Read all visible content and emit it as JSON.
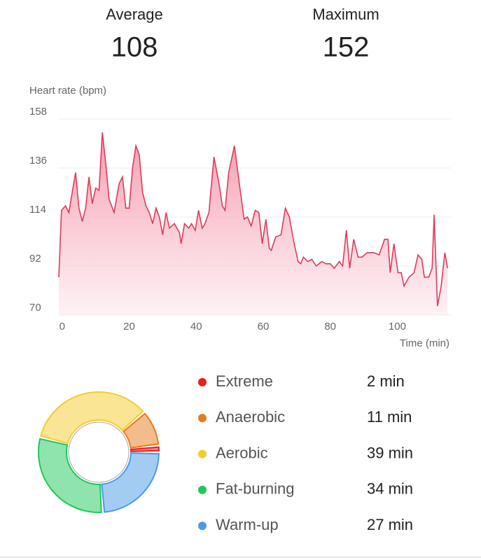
{
  "summary": {
    "average_label": "Average",
    "average": 108,
    "maximum_label": "Maximum",
    "maximum": 152
  },
  "chart_data": [
    {
      "type": "area",
      "y_label": "Heart rate (bpm)",
      "x_label": "Time (min)",
      "color": "#dc3c5a",
      "xlim": [
        -1,
        116
      ],
      "ylim": [
        70,
        158
      ],
      "xticks": [
        0,
        20,
        40,
        60,
        80,
        100
      ],
      "yticks": [
        70,
        92,
        114,
        136,
        158
      ],
      "grid": true,
      "x": [
        -1,
        -0.2,
        1,
        2,
        4,
        5,
        6,
        7,
        8,
        9,
        10,
        11,
        12,
        13,
        14,
        15.5,
        17,
        18,
        19,
        20,
        21,
        22,
        23,
        24,
        25,
        26,
        27,
        28,
        29,
        30,
        31,
        32,
        33.5,
        35,
        35.5,
        36.5,
        37.8,
        38.6,
        39.7,
        40.7,
        41.8,
        42.6,
        43.8,
        45.3,
        46.8,
        47.8,
        48.6,
        49.7,
        51.4,
        52.6,
        54.3,
        55.3,
        56.4,
        57.6,
        58.7,
        59.7,
        60.8,
        61.8,
        62.4,
        63.7,
        65.3,
        66.6,
        67.8,
        69.1,
        70.4,
        71.2,
        72,
        73.3,
        74.5,
        75.8,
        77.5,
        78.7,
        80,
        81.2,
        82.7,
        83.7,
        84.8,
        85.8,
        87,
        88.3,
        89.5,
        91,
        93,
        94.6,
        96.2,
        97.2,
        97.9,
        99,
        100.2,
        101.2,
        102,
        103.5,
        105,
        106.2,
        107.3,
        108.1,
        109.4,
        110.4,
        111,
        112,
        113.1,
        114.2,
        115
      ],
      "values": [
        87,
        117,
        119,
        116,
        134,
        118,
        112,
        118,
        132,
        120,
        127,
        126,
        152,
        138,
        122,
        116,
        129,
        132,
        118,
        118,
        136,
        146,
        142,
        125,
        119,
        116,
        111,
        118,
        114,
        106,
        116,
        109,
        111,
        107,
        102,
        111,
        109,
        111,
        108,
        117,
        109,
        111,
        116,
        141,
        129,
        119,
        117,
        134,
        146,
        132,
        113,
        114,
        110,
        117,
        116,
        102,
        113,
        100,
        99,
        105,
        106,
        118,
        114,
        103,
        94,
        93,
        96,
        94,
        95,
        92,
        94,
        93,
        93,
        91,
        94,
        92,
        108,
        91,
        104,
        96,
        96,
        98,
        98,
        97,
        104,
        104,
        89,
        102,
        89,
        89,
        83,
        87,
        89,
        97,
        95,
        87,
        87,
        91,
        115,
        74,
        83,
        98,
        91
      ]
    },
    {
      "type": "donut",
      "categories": [
        "Extreme",
        "Anaerobic",
        "Aerobic",
        "Fat-burning",
        "Warm-up"
      ],
      "values": [
        2,
        11,
        39,
        34,
        27
      ],
      "value_labels": [
        "2 min",
        "11 min",
        "39 min",
        "34 min",
        "27 min"
      ],
      "colors": [
        "#e8201e",
        "#e97a1c",
        "#f5cc2a",
        "#1ec95a",
        "#4a9ae8"
      ]
    }
  ]
}
